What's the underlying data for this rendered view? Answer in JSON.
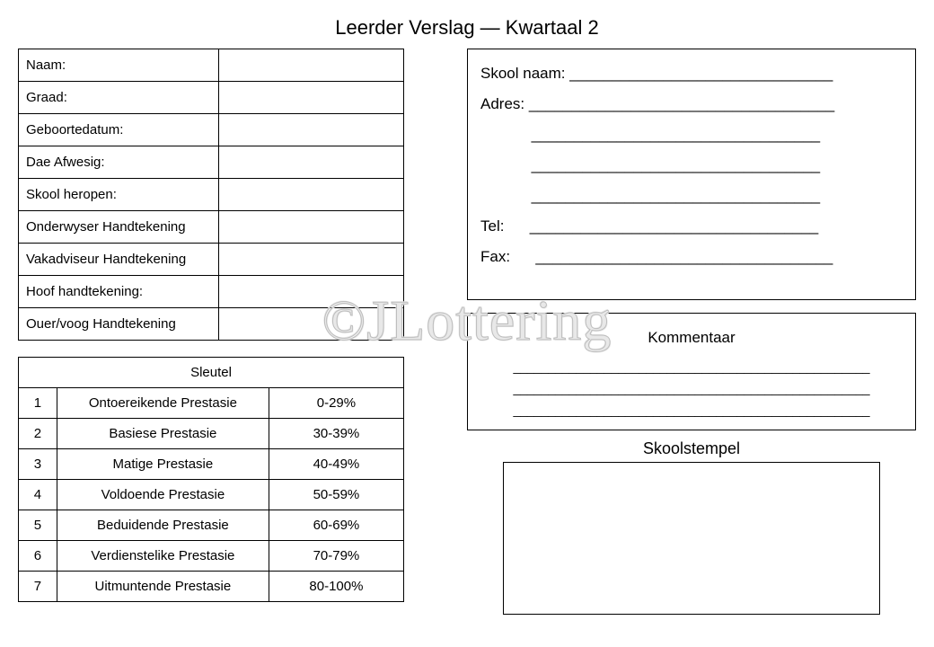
{
  "title": "Leerder Verslag — Kwartaal 2",
  "watermark": "©JLottering",
  "info_rows": [
    "Naam:",
    "Graad:",
    "Geboortedatum:",
    "Dae Afwesig:",
    "Skool heropen:",
    "Onderwyser Handtekening",
    "Vakadviseur Handtekening",
    "Hoof handtekening:",
    "Ouer/voog Handtekening"
  ],
  "key": {
    "header": "Sleutel",
    "rows": [
      {
        "n": "1",
        "desc": "Ontoereikende Prestasie",
        "range": "0-29%"
      },
      {
        "n": "2",
        "desc": "Basiese Prestasie",
        "range": "30-39%"
      },
      {
        "n": "3",
        "desc": "Matige Prestasie",
        "range": "40-49%"
      },
      {
        "n": "4",
        "desc": "Voldoende Prestasie",
        "range": "50-59%"
      },
      {
        "n": "5",
        "desc": "Beduidende Prestasie",
        "range": "60-69%"
      },
      {
        "n": "6",
        "desc": "Verdienstelike Prestasie",
        "range": "70-79%"
      },
      {
        "n": "7",
        "desc": "Uitmuntende Prestasie",
        "range": "80-100%"
      }
    ]
  },
  "school": {
    "lines": [
      "Skool naam: _______________________________",
      "Adres: ____________________________________",
      "            __________________________________",
      "            __________________________________",
      "            __________________________________",
      "Tel:      __________________________________",
      "Fax:      ___________________________________"
    ]
  },
  "comment": {
    "header": "Kommentaar",
    "lines": [
      "___________________________________________________",
      "___________________________________________________",
      "___________________________________________________"
    ]
  },
  "stamp_label": "Skoolstempel",
  "colors": {
    "border": "#000000",
    "background": "#ffffff",
    "text": "#000000",
    "watermark_stroke": "#bdbdbd"
  }
}
